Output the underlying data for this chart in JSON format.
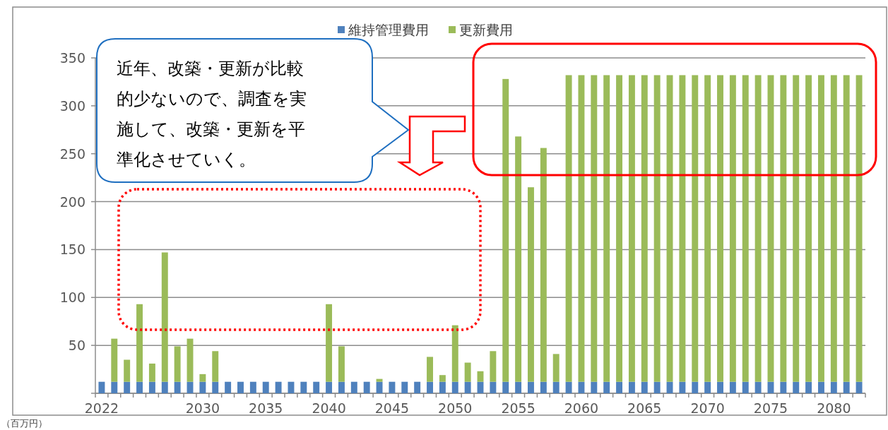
{
  "chart_data": {
    "type": "bar",
    "stacked": true,
    "legend": "top",
    "grid": "y",
    "categories": [
      "2022",
      null,
      null,
      null,
      null,
      null,
      null,
      null,
      "2030",
      null,
      null,
      null,
      null,
      "2035",
      null,
      null,
      null,
      null,
      "2040",
      null,
      null,
      null,
      null,
      "2045",
      null,
      null,
      null,
      null,
      "2050",
      null,
      null,
      null,
      null,
      "2055",
      null,
      null,
      null,
      null,
      "2060",
      null,
      null,
      null,
      null,
      "2065",
      null,
      null,
      null,
      null,
      "2070",
      null,
      null,
      null,
      null,
      "2075",
      null,
      null,
      null,
      null,
      "2080",
      null,
      null
    ],
    "series": [
      {
        "name": "維持管理費用",
        "color": "#4f81bd",
        "values": [
          12,
          12,
          12,
          12,
          12,
          12,
          12,
          12,
          12,
          12,
          12,
          12,
          12,
          12,
          12,
          12,
          12,
          12,
          12,
          12,
          12,
          12,
          12,
          12,
          12,
          12,
          12,
          12,
          12,
          12,
          12,
          12,
          12,
          12,
          12,
          12,
          12,
          12,
          12,
          12,
          12,
          12,
          12,
          12,
          12,
          12,
          12,
          12,
          12,
          12,
          12,
          12,
          12,
          12,
          12,
          12,
          12,
          12,
          12,
          12,
          12
        ]
      },
      {
        "name": "更新費用",
        "color": "#9bbb59",
        "values": [
          0,
          45,
          23,
          81,
          19,
          135,
          37,
          45,
          8,
          32,
          0,
          0,
          0,
          0,
          0,
          0,
          0,
          0,
          81,
          37,
          0,
          0,
          3,
          0,
          0,
          0,
          26,
          7,
          59,
          20,
          11,
          32,
          316,
          256,
          203,
          244,
          29,
          320,
          320,
          320,
          320,
          320,
          320,
          320,
          320,
          320,
          320,
          320,
          320,
          320,
          320,
          320,
          320,
          320,
          320,
          320,
          320,
          320,
          320,
          320,
          320
        ]
      }
    ],
    "ylim": [
      0,
      350
    ],
    "yticks": [
      {
        "value": 0,
        "label": null
      },
      50,
      100,
      150,
      200,
      250,
      300,
      350
    ],
    "annotations": [
      "近年、改築・更新が比較的少ないので、調査を実施して、改築・更新を平準化させていく。",
      "（百万円）"
    ]
  }
}
